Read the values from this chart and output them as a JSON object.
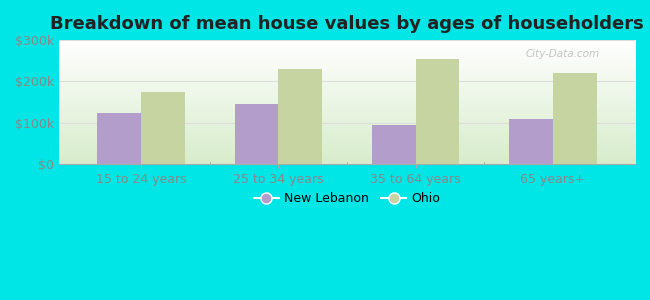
{
  "title": "Breakdown of mean house values by ages of householders",
  "categories": [
    "15 to 24 years",
    "25 to 34 years",
    "35 to 64 years",
    "65 years+"
  ],
  "new_lebanon": [
    125000,
    145000,
    95000,
    110000
  ],
  "ohio": [
    175000,
    230000,
    255000,
    220000
  ],
  "bar_color_nl": "#b39dca",
  "bar_color_ohio": "#c5d4a0",
  "background_outer": "#00e5e5",
  "grad_top": "#ffffff",
  "grad_bottom": "#d8edcc",
  "ylim": [
    0,
    300000
  ],
  "yticks": [
    0,
    100000,
    200000,
    300000
  ],
  "ytick_labels": [
    "$0",
    "$100k",
    "$200k",
    "$300k"
  ],
  "legend_nl": "New Lebanon",
  "legend_ohio": "Ohio",
  "bar_width": 0.32,
  "title_fontsize": 13,
  "tick_fontsize": 9,
  "legend_fontsize": 9,
  "watermark": "City-Data.com",
  "tick_color": "#888888",
  "grid_color": "#dddddd",
  "separator_color": "#aaaaaa"
}
